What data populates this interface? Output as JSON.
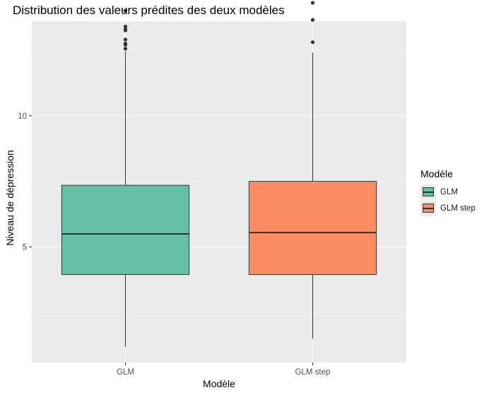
{
  "chart_data": {
    "type": "boxplot",
    "title": "Distribution des valeurs prédites des deux modèles",
    "xlabel": "Modèle",
    "ylabel": "Niveau de dépression",
    "ylim": [
      0.6,
      13.6
    ],
    "y_ticks": [
      5,
      10
    ],
    "grid": true,
    "legend": {
      "title": "Modèle",
      "placement": "right",
      "entries": [
        "GLM",
        "GLM step"
      ]
    },
    "categories": [
      "GLM",
      "GLM step"
    ],
    "series": [
      {
        "name": "GLM",
        "color": "#66c2a5",
        "whisker_low": 1.2,
        "q1": 3.95,
        "median": 5.5,
        "q3": 7.35,
        "whisker_high": 12.45,
        "outliers": [
          12.55,
          12.7,
          12.75,
          12.9,
          13.25,
          13.3,
          13.4,
          14.0
        ]
      },
      {
        "name": "GLM step",
        "color": "#fc8d62",
        "whisker_low": 1.5,
        "q1": 3.95,
        "median": 5.55,
        "q3": 7.5,
        "whisker_high": 12.4,
        "outliers": [
          12.8,
          13.65,
          14.3
        ]
      }
    ]
  }
}
